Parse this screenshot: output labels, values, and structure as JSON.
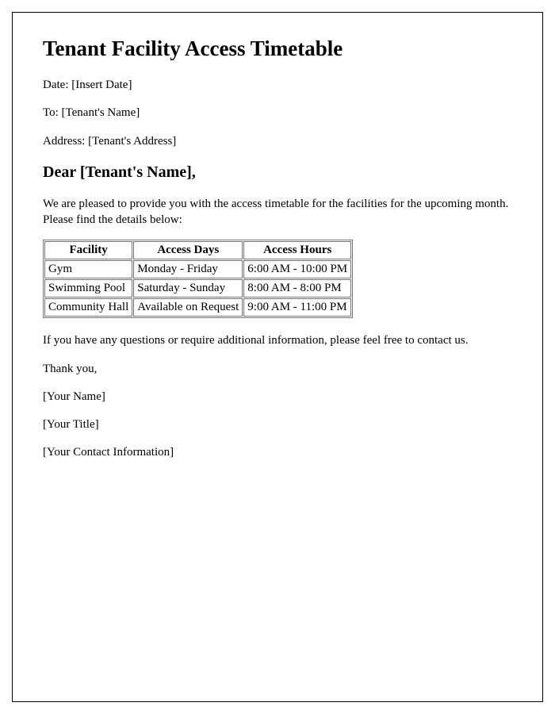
{
  "title": "Tenant Facility Access Timetable",
  "date_line": "Date: [Insert Date]",
  "to_line": "To: [Tenant's Name]",
  "address_line": "Address: [Tenant's Address]",
  "salutation": "Dear [Tenant's Name],",
  "intro": "We are pleased to provide you with the access timetable for the facilities for the upcoming month. Please find the details below:",
  "table": {
    "columns": [
      "Facility",
      "Access Days",
      "Access Hours"
    ],
    "rows": [
      [
        "Gym",
        "Monday - Friday",
        "6:00 AM - 10:00 PM"
      ],
      [
        "Swimming Pool",
        "Saturday - Sunday",
        "8:00 AM - 8:00 PM"
      ],
      [
        "Community Hall",
        "Available on Request",
        "9:00 AM - 11:00 PM"
      ]
    ]
  },
  "closing": "If you have any questions or require additional information, please feel free to contact us.",
  "thank_you": "Thank you,",
  "signature_name": "[Your Name]",
  "signature_title": "[Your Title]",
  "signature_contact": "[Your Contact Information]"
}
